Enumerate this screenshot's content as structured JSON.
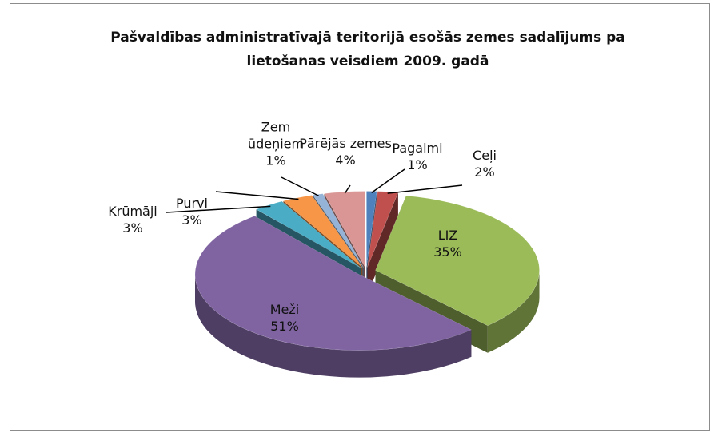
{
  "chart_data": {
    "type": "pie",
    "title": "Pašvaldības administratīvajā teritorijā esošās zemes sadalījums pa lietošanas veisdiem 2009. gadā",
    "categories": [
      "Pagalmi",
      "Ceļi",
      "LIZ",
      "Meži",
      "Krūmāji",
      "Purvi",
      "Zem ūdeņiem",
      "Pārējās zemes"
    ],
    "values": [
      1,
      2,
      35,
      51,
      3,
      3,
      1,
      4
    ],
    "value_labels": [
      "1%",
      "2%",
      "35%",
      "51%",
      "3%",
      "3%",
      "1%",
      "4%"
    ],
    "colors": [
      "#4f81bd",
      "#c0504d",
      "#9bbb59",
      "#8064a2",
      "#4bacc6",
      "#f79646",
      "#95b3d7",
      "#d99694"
    ]
  }
}
